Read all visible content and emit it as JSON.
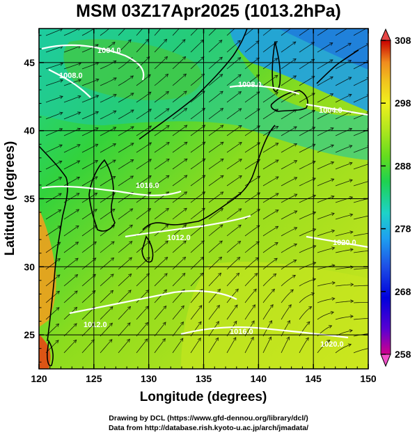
{
  "title": "MSM 03Z17Apr2025 (1013.2hPa)",
  "xaxis": {
    "label": "Longitude (degrees)",
    "ticks": [
      "120",
      "125",
      "130",
      "135",
      "140",
      "145",
      "150"
    ],
    "range": [
      120,
      150
    ]
  },
  "yaxis": {
    "label": "Latitude  (degrees)",
    "ticks": [
      "25",
      "30",
      "35",
      "40",
      "45"
    ],
    "range": [
      22.5,
      47.5
    ]
  },
  "colorbar": {
    "ticks": [
      "308",
      "298",
      "288",
      "278",
      "268",
      "258"
    ],
    "range": [
      258,
      308
    ],
    "colors": [
      "#d2008c",
      "#5a00d2",
      "#0000dc",
      "#1e50e6",
      "#1ea0f0",
      "#1ed2c8",
      "#1ed250",
      "#64dc1e",
      "#b4e61e",
      "#f0f01e",
      "#f0c31e",
      "#f08c1e",
      "#e64614",
      "#c80000"
    ]
  },
  "contour_labels": [
    "1004.0",
    "1008.0",
    "1004.0",
    "1008.0",
    "1016.0",
    "1012.0",
    "1020.0",
    "1012.0",
    "1016.0",
    "1020.0"
  ],
  "credits": {
    "line1": "Drawing by DCL (https://www.gfd-dennou.org/library/dcl/)",
    "line2": "Data from http://database.rish.kyoto-u.ac.jp/arch/jmadata/"
  }
}
